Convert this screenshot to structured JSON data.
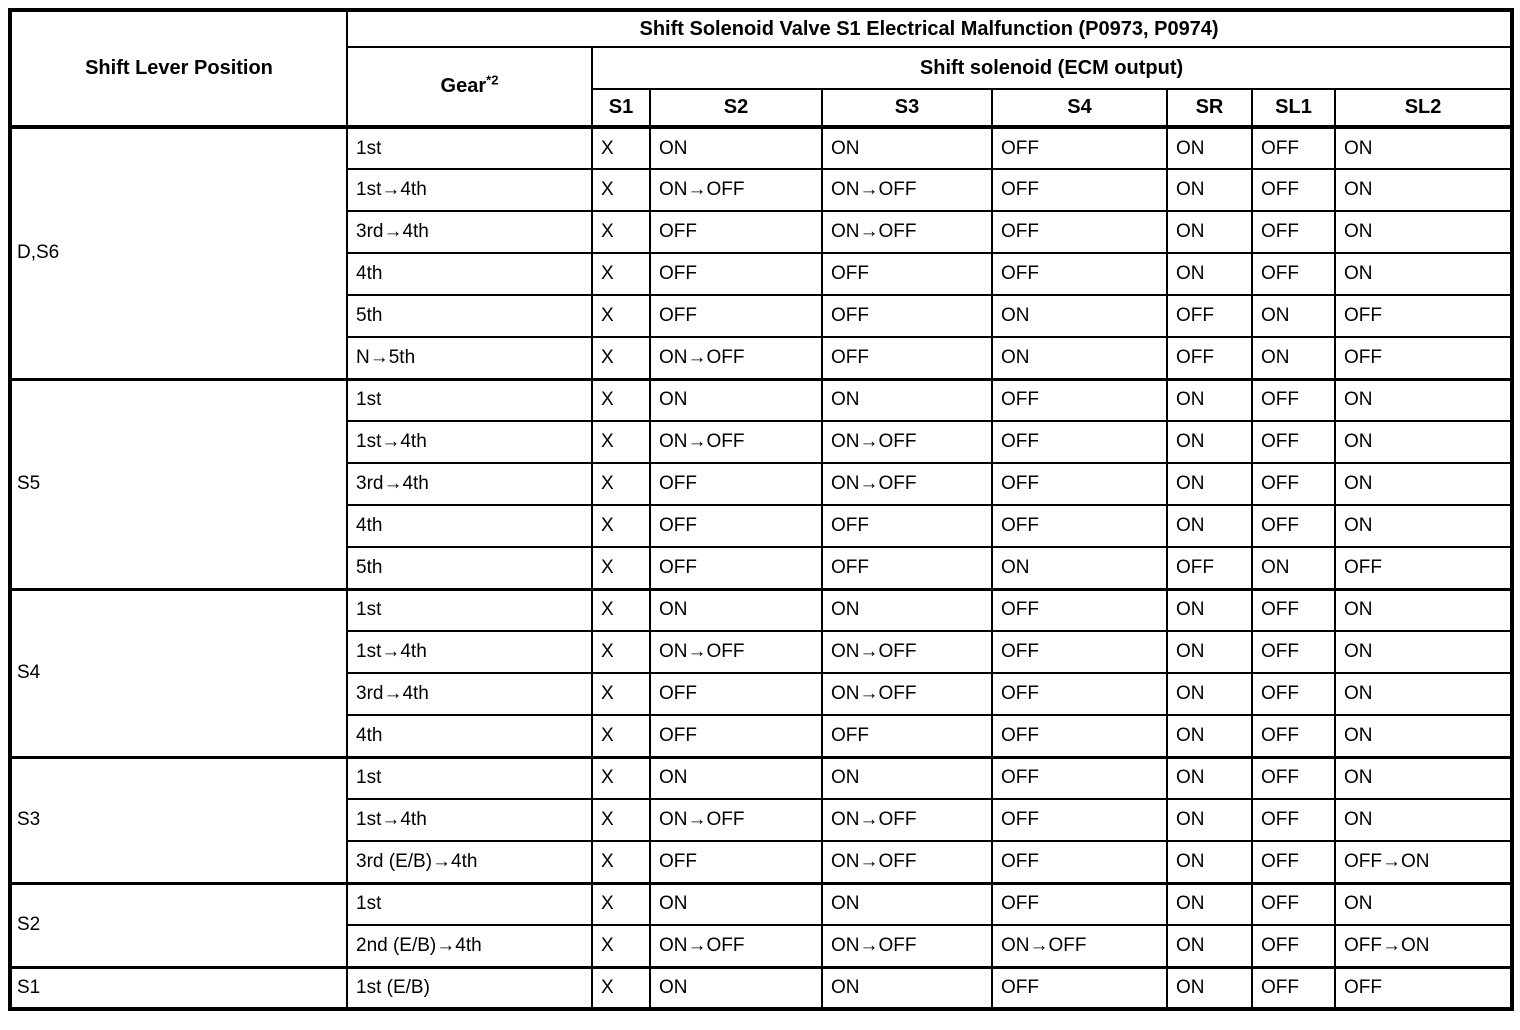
{
  "colors": {
    "background": "#ffffff",
    "text": "#000000",
    "border": "#000000"
  },
  "table": {
    "title": "Shift Solenoid Valve S1 Electrical Malfunction (P0973, P0974)",
    "header": {
      "shift_lever_position": "Shift Lever Position",
      "gear_label": "Gear",
      "gear_superscript": "*2",
      "solenoid_group": "Shift solenoid (ECM output)",
      "solenoid_columns": [
        "S1",
        "S2",
        "S3",
        "S4",
        "SR",
        "SL1",
        "SL2"
      ]
    },
    "blocks": [
      {
        "lever": "D,S6",
        "rows": [
          {
            "gear": "1st",
            "values": [
              "X",
              "ON",
              "ON",
              "OFF",
              "ON",
              "OFF",
              "ON"
            ]
          },
          {
            "gear": "1st→4th",
            "values": [
              "X",
              "ON→OFF",
              "ON→OFF",
              "OFF",
              "ON",
              "OFF",
              "ON"
            ]
          },
          {
            "gear": "3rd→4th",
            "values": [
              "X",
              "OFF",
              "ON→OFF",
              "OFF",
              "ON",
              "OFF",
              "ON"
            ]
          },
          {
            "gear": "4th",
            "values": [
              "X",
              "OFF",
              "OFF",
              "OFF",
              "ON",
              "OFF",
              "ON"
            ]
          },
          {
            "gear": "5th",
            "values": [
              "X",
              "OFF",
              "OFF",
              "ON",
              "OFF",
              "ON",
              "OFF"
            ]
          },
          {
            "gear": "N→5th",
            "values": [
              "X",
              "ON→OFF",
              "OFF",
              "ON",
              "OFF",
              "ON",
              "OFF"
            ]
          }
        ]
      },
      {
        "lever": "S5",
        "rows": [
          {
            "gear": "1st",
            "values": [
              "X",
              "ON",
              "ON",
              "OFF",
              "ON",
              "OFF",
              "ON"
            ]
          },
          {
            "gear": "1st→4th",
            "values": [
              "X",
              "ON→OFF",
              "ON→OFF",
              "OFF",
              "ON",
              "OFF",
              "ON"
            ]
          },
          {
            "gear": "3rd→4th",
            "values": [
              "X",
              "OFF",
              "ON→OFF",
              "OFF",
              "ON",
              "OFF",
              "ON"
            ]
          },
          {
            "gear": "4th",
            "values": [
              "X",
              "OFF",
              "OFF",
              "OFF",
              "ON",
              "OFF",
              "ON"
            ]
          },
          {
            "gear": "5th",
            "values": [
              "X",
              "OFF",
              "OFF",
              "ON",
              "OFF",
              "ON",
              "OFF"
            ]
          }
        ]
      },
      {
        "lever": "S4",
        "rows": [
          {
            "gear": "1st",
            "values": [
              "X",
              "ON",
              "ON",
              "OFF",
              "ON",
              "OFF",
              "ON"
            ]
          },
          {
            "gear": "1st→4th",
            "values": [
              "X",
              "ON→OFF",
              "ON→OFF",
              "OFF",
              "ON",
              "OFF",
              "ON"
            ]
          },
          {
            "gear": "3rd→4th",
            "values": [
              "X",
              "OFF",
              "ON→OFF",
              "OFF",
              "ON",
              "OFF",
              "ON"
            ]
          },
          {
            "gear": "4th",
            "values": [
              "X",
              "OFF",
              "OFF",
              "OFF",
              "ON",
              "OFF",
              "ON"
            ]
          }
        ]
      },
      {
        "lever": "S3",
        "rows": [
          {
            "gear": "1st",
            "values": [
              "X",
              "ON",
              "ON",
              "OFF",
              "ON",
              "OFF",
              "ON"
            ]
          },
          {
            "gear": "1st→4th",
            "values": [
              "X",
              "ON→OFF",
              "ON→OFF",
              "OFF",
              "ON",
              "OFF",
              "ON"
            ]
          },
          {
            "gear": "3rd (E/B)→4th",
            "values": [
              "X",
              "OFF",
              "ON→OFF",
              "OFF",
              "ON",
              "OFF",
              "OFF→ON"
            ]
          }
        ]
      },
      {
        "lever": "S2",
        "rows": [
          {
            "gear": "1st",
            "values": [
              "X",
              "ON",
              "ON",
              "OFF",
              "ON",
              "OFF",
              "ON"
            ]
          },
          {
            "gear": "2nd (E/B)→4th",
            "values": [
              "X",
              "ON→OFF",
              "ON→OFF",
              "ON→OFF",
              "ON",
              "OFF",
              "OFF→ON"
            ]
          }
        ]
      },
      {
        "lever": "S1",
        "rows": [
          {
            "gear": "1st (E/B)",
            "values": [
              "X",
              "ON",
              "ON",
              "OFF",
              "ON",
              "OFF",
              "OFF"
            ]
          }
        ]
      }
    ]
  }
}
